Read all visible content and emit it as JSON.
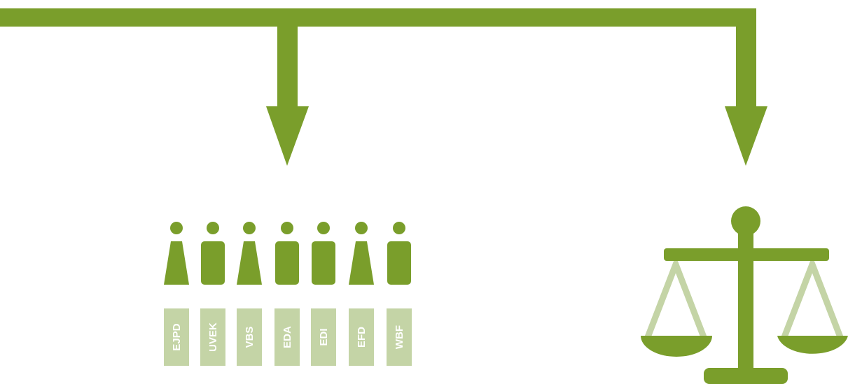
{
  "departments": [
    "EJPD",
    "UVEK",
    "VBS",
    "EDA",
    "EDI",
    "EFD",
    "WBF"
  ]
}
